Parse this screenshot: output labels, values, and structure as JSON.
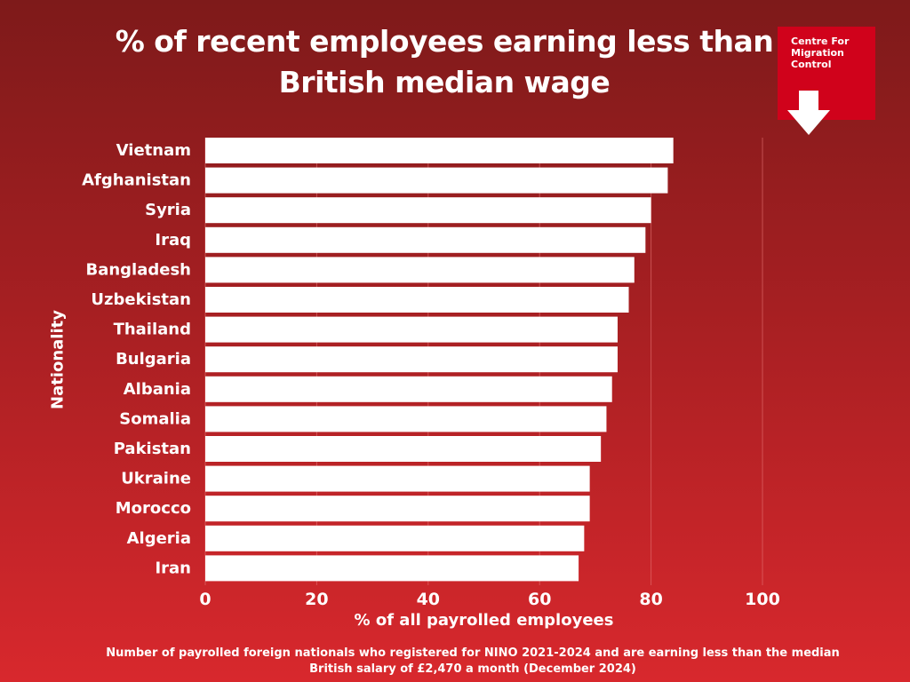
{
  "page": {
    "title_line1": "% of recent employees earning less than",
    "title_line2": "British median wage",
    "logo_text": "Centre For Migration Control",
    "footnote": "Number of payrolled foreign nationals who registered for NINO 2021-2024 and are earning less than the median British salary of £2,470 a month (December 2024)"
  },
  "colors": {
    "bar": "#ffffff",
    "gridline": "#e57373",
    "logo_bg": "#d0021b"
  },
  "chart_data": {
    "type": "bar",
    "orientation": "horizontal",
    "title": "% of recent employees earning less than British median wage",
    "xlabel": "% of all payrolled employees",
    "ylabel": "Nationality",
    "xlim": [
      0,
      100
    ],
    "xticks": [
      0,
      20,
      40,
      60,
      80,
      100
    ],
    "grid": true,
    "categories": [
      "Vietnam",
      "Afghanistan",
      "Syria",
      "Iraq",
      "Bangladesh",
      "Uzbekistan",
      "Thailand",
      "Bulgaria",
      "Albania",
      "Somalia",
      "Pakistan",
      "Ukraine",
      "Morocco",
      "Algeria",
      "Iran"
    ],
    "values": [
      84,
      83,
      80,
      79,
      77,
      76,
      74,
      74,
      73,
      72,
      71,
      69,
      69,
      68,
      67
    ]
  }
}
